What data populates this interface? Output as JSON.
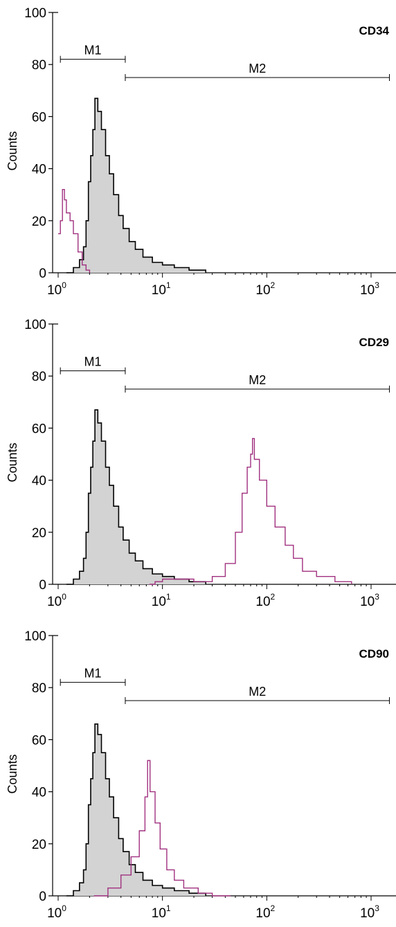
{
  "chart_data": [
    {
      "type": "area",
      "panel_label": "CD34",
      "ylabel": "Counts",
      "xscale": "log",
      "xlim": [
        1,
        1500
      ],
      "ylim": [
        0,
        100
      ],
      "x_ticks": [
        {
          "value": 1,
          "base": "10",
          "exp": "0"
        },
        {
          "value": 10,
          "base": "10",
          "exp": "1"
        },
        {
          "value": 100,
          "base": "10",
          "exp": "2"
        },
        {
          "value": 1000,
          "base": "10",
          "exp": "3"
        }
      ],
      "y_ticks": [
        0,
        20,
        40,
        60,
        80,
        100
      ],
      "markers": [
        {
          "label": "M1",
          "x_start": 1.05,
          "x_end": 4.4,
          "y": 82
        },
        {
          "label": "M2",
          "x_start": 4.4,
          "x_end": 1500,
          "y": 75
        }
      ],
      "series": [
        {
          "role": "control-filled",
          "color": "#000000",
          "fill": "#d3d3d3",
          "points": [
            [
              1.2,
              0
            ],
            [
              1.4,
              2
            ],
            [
              1.6,
              5
            ],
            [
              1.75,
              10
            ],
            [
              1.85,
              20
            ],
            [
              1.95,
              35
            ],
            [
              2.05,
              45
            ],
            [
              2.15,
              55
            ],
            [
              2.25,
              67
            ],
            [
              2.4,
              62
            ],
            [
              2.6,
              55
            ],
            [
              2.85,
              45
            ],
            [
              3.1,
              38
            ],
            [
              3.4,
              30
            ],
            [
              3.8,
              22
            ],
            [
              4.2,
              17
            ],
            [
              4.8,
              12
            ],
            [
              5.5,
              9
            ],
            [
              6.5,
              6
            ],
            [
              8,
              4
            ],
            [
              10,
              3
            ],
            [
              13,
              2
            ],
            [
              18,
              1
            ],
            [
              26,
              0
            ]
          ]
        },
        {
          "role": "antibody",
          "color": "#a0307f",
          "points": [
            [
              1.0,
              15
            ],
            [
              1.05,
              20
            ],
            [
              1.1,
              32
            ],
            [
              1.15,
              28
            ],
            [
              1.2,
              23
            ],
            [
              1.3,
              20
            ],
            [
              1.4,
              15
            ],
            [
              1.55,
              8
            ],
            [
              1.7,
              3
            ],
            [
              1.85,
              1
            ],
            [
              2.0,
              0
            ]
          ]
        }
      ]
    },
    {
      "type": "area",
      "panel_label": "CD29",
      "ylabel": "Counts",
      "xscale": "log",
      "xlim": [
        1,
        1500
      ],
      "ylim": [
        0,
        100
      ],
      "x_ticks": [
        {
          "value": 1,
          "base": "10",
          "exp": "0"
        },
        {
          "value": 10,
          "base": "10",
          "exp": "1"
        },
        {
          "value": 100,
          "base": "10",
          "exp": "2"
        },
        {
          "value": 1000,
          "base": "10",
          "exp": "3"
        }
      ],
      "y_ticks": [
        0,
        20,
        40,
        60,
        80,
        100
      ],
      "markers": [
        {
          "label": "M1",
          "x_start": 1.05,
          "x_end": 4.4,
          "y": 82
        },
        {
          "label": "M2",
          "x_start": 4.4,
          "x_end": 1500,
          "y": 75
        }
      ],
      "series": [
        {
          "role": "control-filled",
          "color": "#000000",
          "fill": "#d3d3d3",
          "points": [
            [
              1.2,
              0
            ],
            [
              1.4,
              2
            ],
            [
              1.6,
              5
            ],
            [
              1.75,
              10
            ],
            [
              1.85,
              20
            ],
            [
              1.95,
              35
            ],
            [
              2.05,
              45
            ],
            [
              2.15,
              55
            ],
            [
              2.25,
              67
            ],
            [
              2.4,
              62
            ],
            [
              2.6,
              55
            ],
            [
              2.85,
              45
            ],
            [
              3.1,
              38
            ],
            [
              3.4,
              30
            ],
            [
              3.8,
              22
            ],
            [
              4.2,
              17
            ],
            [
              4.8,
              12
            ],
            [
              5.5,
              9
            ],
            [
              6.5,
              6
            ],
            [
              8,
              4
            ],
            [
              10,
              3
            ],
            [
              13,
              2
            ],
            [
              18,
              1
            ],
            [
              26,
              0
            ]
          ]
        },
        {
          "role": "antibody",
          "color": "#a0307f",
          "points": [
            [
              7.5,
              0
            ],
            [
              8.5,
              1
            ],
            [
              10,
              2
            ],
            [
              15,
              2
            ],
            [
              20,
              1
            ],
            [
              30,
              3
            ],
            [
              40,
              8
            ],
            [
              50,
              20
            ],
            [
              58,
              35
            ],
            [
              65,
              45
            ],
            [
              70,
              50
            ],
            [
              73,
              56
            ],
            [
              76,
              48
            ],
            [
              85,
              40
            ],
            [
              100,
              30
            ],
            [
              120,
              22
            ],
            [
              150,
              15
            ],
            [
              180,
              10
            ],
            [
              220,
              5
            ],
            [
              300,
              3
            ],
            [
              450,
              1
            ],
            [
              650,
              0
            ]
          ]
        }
      ]
    },
    {
      "type": "area",
      "panel_label": "CD90",
      "ylabel": "Counts",
      "xscale": "log",
      "xlim": [
        1,
        1500
      ],
      "ylim": [
        0,
        100
      ],
      "x_ticks": [
        {
          "value": 1,
          "base": "10",
          "exp": "0"
        },
        {
          "value": 10,
          "base": "10",
          "exp": "1"
        },
        {
          "value": 100,
          "base": "10",
          "exp": "2"
        },
        {
          "value": 1000,
          "base": "10",
          "exp": "3"
        }
      ],
      "y_ticks": [
        0,
        20,
        40,
        60,
        80,
        100
      ],
      "markers": [
        {
          "label": "M1",
          "x_start": 1.05,
          "x_end": 4.4,
          "y": 82
        },
        {
          "label": "M2",
          "x_start": 4.4,
          "x_end": 1500,
          "y": 75
        }
      ],
      "series": [
        {
          "role": "control-filled",
          "color": "#000000",
          "fill": "#d3d3d3",
          "points": [
            [
              1.2,
              0
            ],
            [
              1.4,
              2
            ],
            [
              1.6,
              5
            ],
            [
              1.75,
              10
            ],
            [
              1.85,
              20
            ],
            [
              1.95,
              35
            ],
            [
              2.05,
              45
            ],
            [
              2.15,
              55
            ],
            [
              2.25,
              66
            ],
            [
              2.4,
              62
            ],
            [
              2.6,
              55
            ],
            [
              2.85,
              45
            ],
            [
              3.1,
              38
            ],
            [
              3.4,
              30
            ],
            [
              3.8,
              22
            ],
            [
              4.2,
              17
            ],
            [
              4.8,
              12
            ],
            [
              5.5,
              9
            ],
            [
              6.5,
              6
            ],
            [
              8,
              4
            ],
            [
              10,
              3
            ],
            [
              13,
              2
            ],
            [
              18,
              1
            ],
            [
              26,
              0
            ]
          ]
        },
        {
          "role": "antibody",
          "color": "#a0307f",
          "points": [
            [
              2.2,
              0
            ],
            [
              3,
              3
            ],
            [
              4,
              8
            ],
            [
              5,
              15
            ],
            [
              6,
              25
            ],
            [
              6.8,
              38
            ],
            [
              7.2,
              52
            ],
            [
              7.6,
              40
            ],
            [
              8.5,
              28
            ],
            [
              9.5,
              18
            ],
            [
              11,
              10
            ],
            [
              13,
              6
            ],
            [
              16,
              3
            ],
            [
              22,
              1
            ],
            [
              30,
              0
            ],
            [
              45,
              0
            ]
          ]
        }
      ]
    }
  ]
}
